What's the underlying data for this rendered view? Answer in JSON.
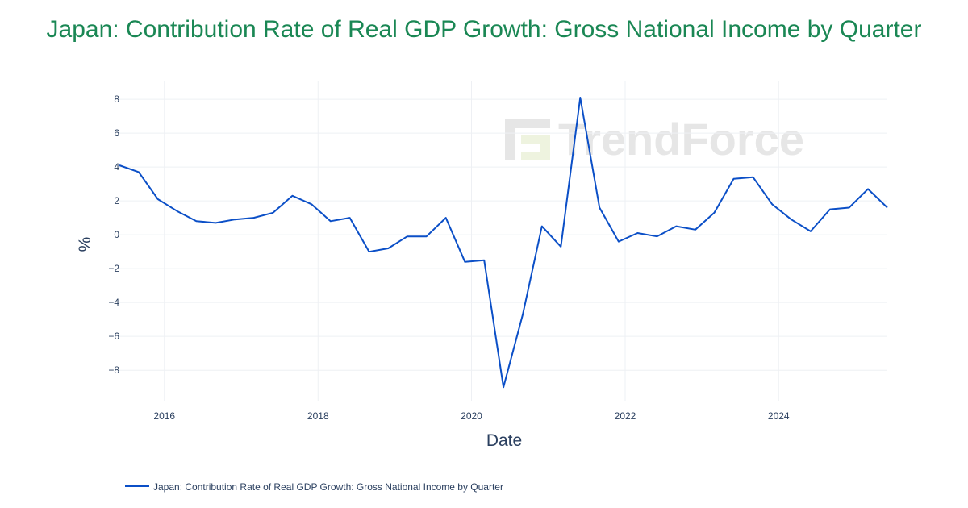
{
  "title": "Japan: Contribution Rate of Real GDP Growth: Gross National Income by Quarter",
  "watermark": "TrendForce",
  "colors": {
    "title": "#1a8754",
    "series": "#0b4fc7",
    "grid": "#eef0f4",
    "text": "#2a3f5f",
    "watermark": "#e6e6e6"
  },
  "chart_data": {
    "type": "line",
    "title": "Japan: Contribution Rate of Real GDP Growth: Gross National Income by Quarter",
    "xlabel": "Date",
    "ylabel": "%",
    "x_ticks": [
      "2016",
      "2018",
      "2020",
      "2022",
      "2024"
    ],
    "y_ticks": [
      8,
      6,
      4,
      2,
      0,
      -2,
      -4,
      -6,
      -8
    ],
    "y_tick_labels": [
      "8",
      "6",
      "4",
      "2",
      "0",
      "−2",
      "−4",
      "−6",
      "−8"
    ],
    "xlim": [
      "2015-06-01",
      "2025-06-01"
    ],
    "ylim": [
      -9.8,
      9.1
    ],
    "grid": true,
    "legend_position": "bottom-left",
    "series": [
      {
        "name": "Japan: Contribution Rate of Real GDP Growth: Gross National Income by Quarter",
        "x": [
          "2015-06-01",
          "2015-09-01",
          "2015-12-01",
          "2016-03-01",
          "2016-06-01",
          "2016-09-01",
          "2016-12-01",
          "2017-03-01",
          "2017-06-01",
          "2017-09-01",
          "2017-12-01",
          "2018-03-01",
          "2018-06-01",
          "2018-09-01",
          "2018-12-01",
          "2019-03-01",
          "2019-06-01",
          "2019-09-01",
          "2019-12-01",
          "2020-03-01",
          "2020-06-01",
          "2020-09-01",
          "2020-12-01",
          "2021-03-01",
          "2021-06-01",
          "2021-09-01",
          "2021-12-01",
          "2022-03-01",
          "2022-06-01",
          "2022-09-01",
          "2022-12-01",
          "2023-03-01",
          "2023-06-01",
          "2023-09-01",
          "2023-12-01",
          "2024-03-01",
          "2024-06-01",
          "2024-09-01",
          "2024-12-01",
          "2025-03-01",
          "2025-06-01"
        ],
        "y": [
          4.1,
          3.7,
          2.1,
          1.4,
          0.8,
          0.7,
          0.9,
          1.0,
          1.3,
          2.3,
          1.8,
          0.8,
          1.0,
          -1.0,
          -0.8,
          -0.1,
          -0.1,
          1.0,
          -1.6,
          -1.5,
          -9.0,
          -4.7,
          0.5,
          -0.7,
          8.1,
          1.6,
          -0.4,
          0.1,
          -0.1,
          0.5,
          0.3,
          1.3,
          3.3,
          3.4,
          1.8,
          0.9,
          0.2,
          1.5,
          1.6,
          2.7,
          1.6
        ]
      }
    ]
  }
}
